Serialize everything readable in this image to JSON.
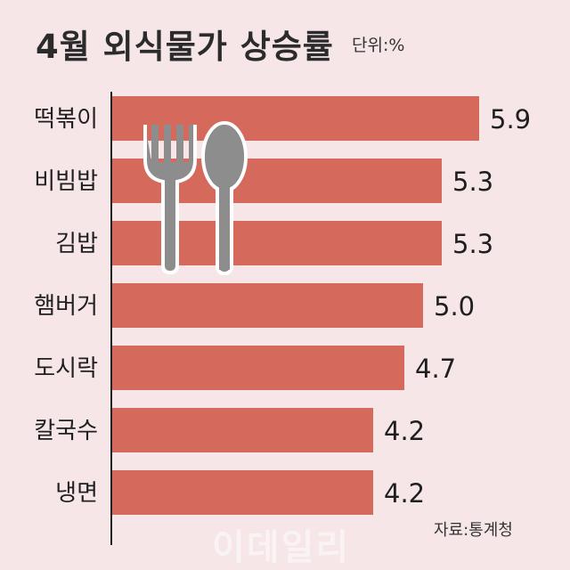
{
  "title": "4월 외식물가 상승률",
  "unit": "단위:%",
  "source": "자료:통계청",
  "watermark": "이데일리",
  "colors": {
    "bar": "#d5695c",
    "background": "#f6e6e8",
    "axis": "#222222",
    "utensil": "#8d8d8d"
  },
  "chart_data": {
    "type": "bar",
    "orientation": "horizontal",
    "categories": [
      "떡볶이",
      "비빔밥",
      "김밥",
      "햄버거",
      "도시락",
      "칼국수",
      "냉면"
    ],
    "values": [
      5.9,
      5.3,
      5.3,
      5.0,
      4.7,
      4.2,
      4.2
    ],
    "value_labels": [
      "5.9",
      "5.3",
      "5.3",
      "5.0",
      "4.7",
      "4.2",
      "4.2"
    ],
    "title": "4월 외식물가 상승률",
    "xlabel": "",
    "ylabel": "",
    "unit": "%",
    "xlim": [
      0,
      6.0
    ],
    "grid": false,
    "legend": "none"
  }
}
